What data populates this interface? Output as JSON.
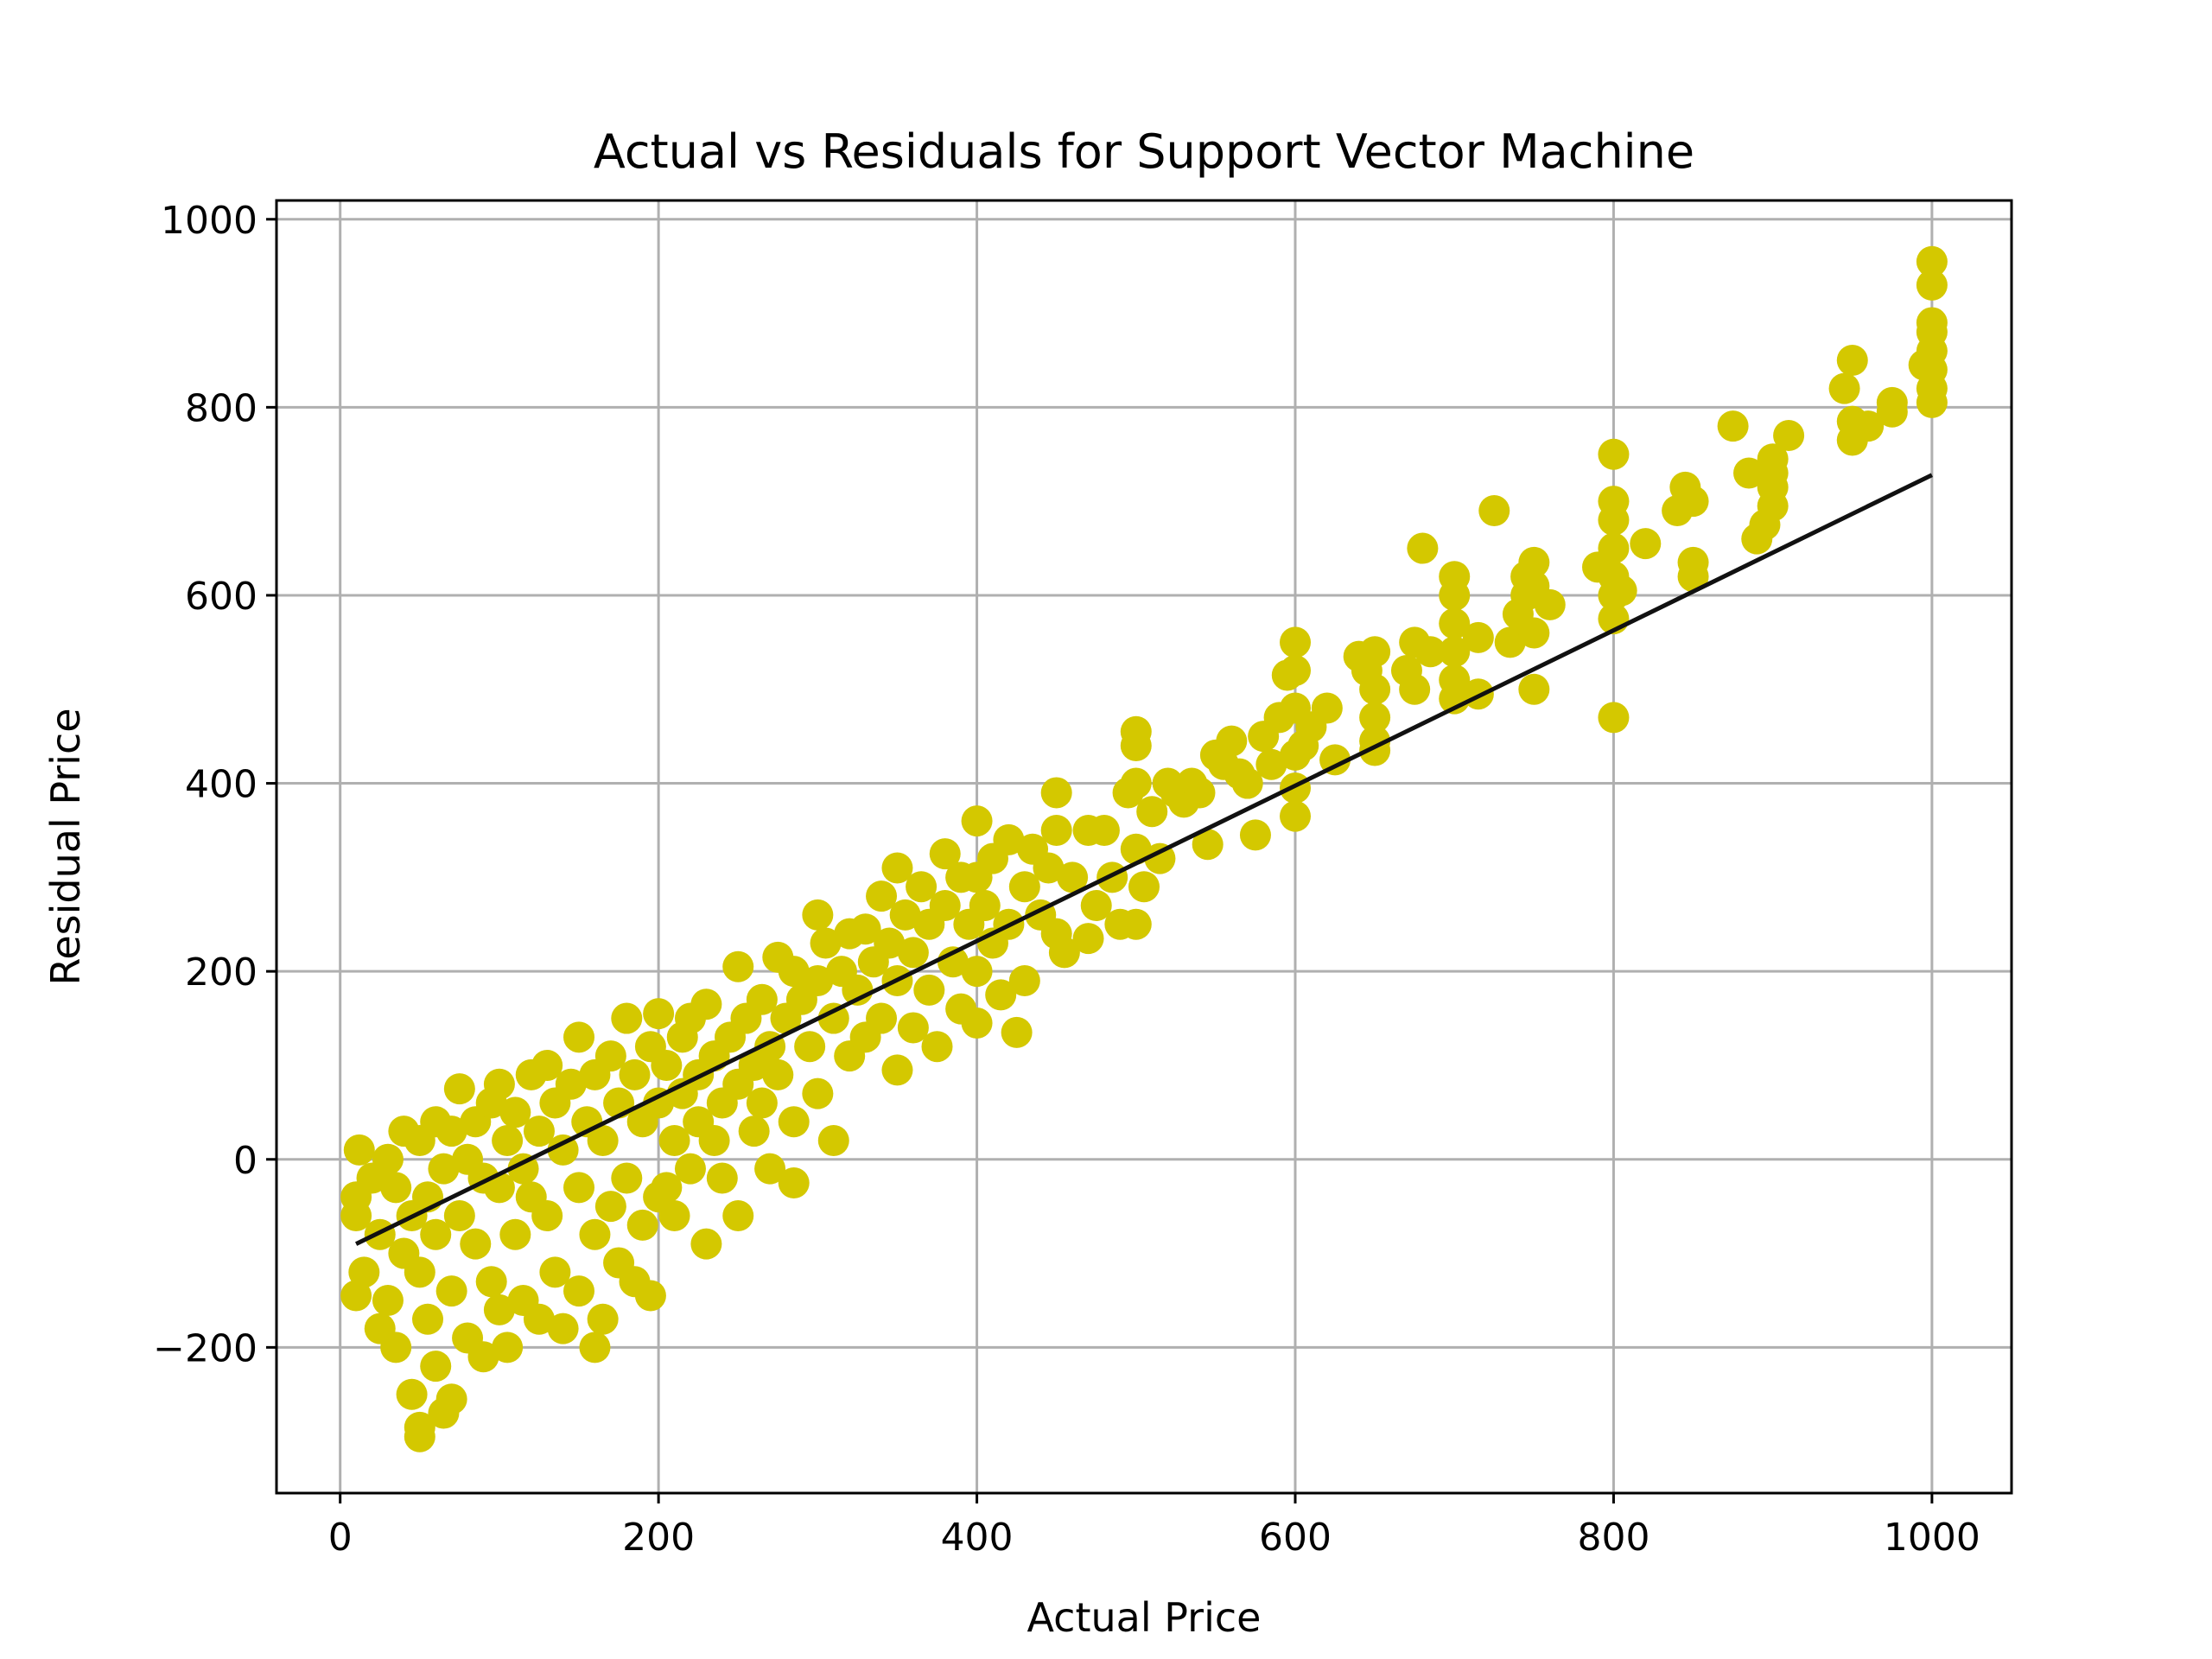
{
  "chart_data": {
    "type": "scatter",
    "title": "Actual vs Residuals for Support Vector Machine",
    "xlabel": "Actual Price",
    "ylabel": "Residual Price",
    "xlim": [
      -40,
      1050
    ],
    "ylim": [
      -355,
      1020
    ],
    "x_ticks": [
      0,
      200,
      400,
      600,
      800,
      1000
    ],
    "y_ticks": [
      -200,
      0,
      200,
      400,
      600,
      800,
      1000
    ],
    "x_tick_labels": [
      "0",
      "200",
      "400",
      "600",
      "800",
      "1000"
    ],
    "y_tick_labels": [
      "−200",
      "0",
      "200",
      "400",
      "600",
      "800",
      "1000"
    ],
    "grid": true,
    "point_color": "#d4c800",
    "line_color": "#111111",
    "fit_line": {
      "x": [
        10,
        1000
      ],
      "y": [
        -90,
        728
      ]
    },
    "series": [
      {
        "points": [
          [
            10,
            -60
          ],
          [
            10,
            -40
          ],
          [
            10,
            -145
          ],
          [
            12,
            10
          ],
          [
            15,
            -120
          ],
          [
            20,
            -20
          ],
          [
            25,
            -80
          ],
          [
            25,
            -180
          ],
          [
            30,
            0
          ],
          [
            30,
            -150
          ],
          [
            35,
            -30
          ],
          [
            35,
            -200
          ],
          [
            40,
            30
          ],
          [
            40,
            -100
          ],
          [
            45,
            -60
          ],
          [
            45,
            -250
          ],
          [
            50,
            20
          ],
          [
            50,
            -120
          ],
          [
            50,
            -295
          ],
          [
            50,
            -285
          ],
          [
            55,
            -40
          ],
          [
            55,
            -170
          ],
          [
            60,
            40
          ],
          [
            60,
            -80
          ],
          [
            60,
            -220
          ],
          [
            65,
            -10
          ],
          [
            65,
            -270
          ],
          [
            70,
            30
          ],
          [
            70,
            -140
          ],
          [
            70,
            -255
          ],
          [
            75,
            75
          ],
          [
            75,
            -60
          ],
          [
            80,
            0
          ],
          [
            80,
            -190
          ],
          [
            85,
            40
          ],
          [
            85,
            -90
          ],
          [
            90,
            -20
          ],
          [
            90,
            -210
          ],
          [
            95,
            60
          ],
          [
            95,
            -130
          ],
          [
            100,
            80
          ],
          [
            100,
            -30
          ],
          [
            100,
            -160
          ],
          [
            105,
            20
          ],
          [
            105,
            -200
          ],
          [
            110,
            50
          ],
          [
            110,
            -80
          ],
          [
            115,
            -10
          ],
          [
            115,
            -150
          ],
          [
            120,
            90
          ],
          [
            120,
            -40
          ],
          [
            125,
            30
          ],
          [
            125,
            -170
          ],
          [
            130,
            100
          ],
          [
            130,
            -60
          ],
          [
            135,
            60
          ],
          [
            135,
            -120
          ],
          [
            140,
            10
          ],
          [
            140,
            -180
          ],
          [
            145,
            80
          ],
          [
            150,
            130
          ],
          [
            150,
            -30
          ],
          [
            150,
            -140
          ],
          [
            155,
            40
          ],
          [
            160,
            90
          ],
          [
            160,
            -80
          ],
          [
            160,
            -200
          ],
          [
            165,
            20
          ],
          [
            165,
            -170
          ],
          [
            170,
            110
          ],
          [
            170,
            -50
          ],
          [
            175,
            60
          ],
          [
            175,
            -110
          ],
          [
            180,
            150
          ],
          [
            180,
            -20
          ],
          [
            185,
            90
          ],
          [
            185,
            -130
          ],
          [
            190,
            40
          ],
          [
            190,
            -70
          ],
          [
            195,
            120
          ],
          [
            195,
            -145
          ],
          [
            200,
            155
          ],
          [
            200,
            60
          ],
          [
            200,
            -40
          ],
          [
            205,
            100
          ],
          [
            205,
            -30
          ],
          [
            210,
            20
          ],
          [
            210,
            -60
          ],
          [
            215,
            130
          ],
          [
            215,
            70
          ],
          [
            220,
            150
          ],
          [
            220,
            -10
          ],
          [
            225,
            90
          ],
          [
            225,
            40
          ],
          [
            230,
            165
          ],
          [
            230,
            -90
          ],
          [
            235,
            110
          ],
          [
            235,
            20
          ],
          [
            240,
            60
          ],
          [
            240,
            -20
          ],
          [
            245,
            130
          ],
          [
            250,
            205
          ],
          [
            250,
            80
          ],
          [
            250,
            -60
          ],
          [
            255,
            150
          ],
          [
            260,
            100
          ],
          [
            260,
            30
          ],
          [
            265,
            170
          ],
          [
            265,
            60
          ],
          [
            270,
            120
          ],
          [
            270,
            -10
          ],
          [
            275,
            215
          ],
          [
            275,
            90
          ],
          [
            280,
            150
          ],
          [
            285,
            200
          ],
          [
            285,
            40
          ],
          [
            285,
            -25
          ],
          [
            290,
            170
          ],
          [
            295,
            120
          ],
          [
            300,
            260
          ],
          [
            300,
            190
          ],
          [
            300,
            70
          ],
          [
            305,
            230
          ],
          [
            310,
            150
          ],
          [
            310,
            20
          ],
          [
            315,
            200
          ],
          [
            320,
            240
          ],
          [
            320,
            110
          ],
          [
            325,
            180
          ],
          [
            330,
            245
          ],
          [
            330,
            130
          ],
          [
            335,
            210
          ],
          [
            340,
            280
          ],
          [
            340,
            150
          ],
          [
            345,
            230
          ],
          [
            350,
            310
          ],
          [
            350,
            190
          ],
          [
            350,
            95
          ],
          [
            355,
            260
          ],
          [
            360,
            220
          ],
          [
            360,
            140
          ],
          [
            365,
            290
          ],
          [
            370,
            250
          ],
          [
            370,
            180
          ],
          [
            375,
            120
          ],
          [
            380,
            325
          ],
          [
            380,
            270
          ],
          [
            385,
            210
          ],
          [
            390,
            300
          ],
          [
            390,
            160
          ],
          [
            395,
            250
          ],
          [
            400,
            360
          ],
          [
            400,
            300
          ],
          [
            400,
            200
          ],
          [
            400,
            145
          ],
          [
            405,
            270
          ],
          [
            410,
            320
          ],
          [
            410,
            230
          ],
          [
            415,
            175
          ],
          [
            420,
            340
          ],
          [
            420,
            250
          ],
          [
            425,
            135
          ],
          [
            430,
            290
          ],
          [
            430,
            190
          ],
          [
            435,
            330
          ],
          [
            440,
            260
          ],
          [
            445,
            310
          ],
          [
            450,
            390
          ],
          [
            450,
            350
          ],
          [
            450,
            240
          ],
          [
            455,
            220
          ],
          [
            460,
            300
          ],
          [
            470,
            350
          ],
          [
            470,
            235
          ],
          [
            475,
            270
          ],
          [
            480,
            350
          ],
          [
            485,
            300
          ],
          [
            490,
            250
          ],
          [
            495,
            390
          ],
          [
            500,
            455
          ],
          [
            500,
            440
          ],
          [
            500,
            400
          ],
          [
            500,
            330
          ],
          [
            500,
            250
          ],
          [
            505,
            290
          ],
          [
            510,
            370
          ],
          [
            515,
            320
          ],
          [
            520,
            400
          ],
          [
            525,
            390
          ],
          [
            530,
            380
          ],
          [
            535,
            400
          ],
          [
            540,
            390
          ],
          [
            545,
            335
          ],
          [
            550,
            430
          ],
          [
            555,
            420
          ],
          [
            560,
            445
          ],
          [
            565,
            410
          ],
          [
            570,
            400
          ],
          [
            575,
            345
          ],
          [
            580,
            450
          ],
          [
            585,
            420
          ],
          [
            590,
            470
          ],
          [
            595,
            515
          ],
          [
            600,
            550
          ],
          [
            600,
            520
          ],
          [
            600,
            480
          ],
          [
            600,
            430
          ],
          [
            600,
            395
          ],
          [
            600,
            365
          ],
          [
            605,
            440
          ],
          [
            610,
            460
          ],
          [
            620,
            480
          ],
          [
            625,
            425
          ],
          [
            640,
            535
          ],
          [
            645,
            520
          ],
          [
            650,
            540
          ],
          [
            650,
            500
          ],
          [
            650,
            470
          ],
          [
            650,
            445
          ],
          [
            650,
            435
          ],
          [
            670,
            520
          ],
          [
            675,
            550
          ],
          [
            675,
            500
          ],
          [
            680,
            650
          ],
          [
            685,
            540
          ],
          [
            700,
            620
          ],
          [
            700,
            600
          ],
          [
            700,
            570
          ],
          [
            700,
            540
          ],
          [
            700,
            510
          ],
          [
            700,
            490
          ],
          [
            715,
            555
          ],
          [
            715,
            495
          ],
          [
            725,
            690
          ],
          [
            735,
            550
          ],
          [
            740,
            580
          ],
          [
            745,
            620
          ],
          [
            745,
            600
          ],
          [
            750,
            635
          ],
          [
            750,
            610
          ],
          [
            750,
            560
          ],
          [
            750,
            500
          ],
          [
            760,
            590
          ],
          [
            790,
            630
          ],
          [
            800,
            750
          ],
          [
            800,
            700
          ],
          [
            800,
            680
          ],
          [
            800,
            650
          ],
          [
            800,
            620
          ],
          [
            800,
            600
          ],
          [
            800,
            575
          ],
          [
            800,
            470
          ],
          [
            805,
            605
          ],
          [
            820,
            655
          ],
          [
            840,
            690
          ],
          [
            845,
            715
          ],
          [
            850,
            700
          ],
          [
            850,
            635
          ],
          [
            850,
            620
          ],
          [
            875,
            780
          ],
          [
            885,
            730
          ],
          [
            890,
            660
          ],
          [
            895,
            675
          ],
          [
            900,
            745
          ],
          [
            900,
            730
          ],
          [
            900,
            715
          ],
          [
            900,
            695
          ],
          [
            910,
            770
          ],
          [
            945,
            820
          ],
          [
            950,
            850
          ],
          [
            950,
            785
          ],
          [
            950,
            765
          ],
          [
            960,
            780
          ],
          [
            975,
            805
          ],
          [
            975,
            795
          ],
          [
            995,
            845
          ],
          [
            1000,
            955
          ],
          [
            1000,
            930
          ],
          [
            1000,
            890
          ],
          [
            1000,
            880
          ],
          [
            1000,
            860
          ],
          [
            1000,
            840
          ],
          [
            1000,
            820
          ],
          [
            1000,
            805
          ]
        ]
      }
    ]
  }
}
